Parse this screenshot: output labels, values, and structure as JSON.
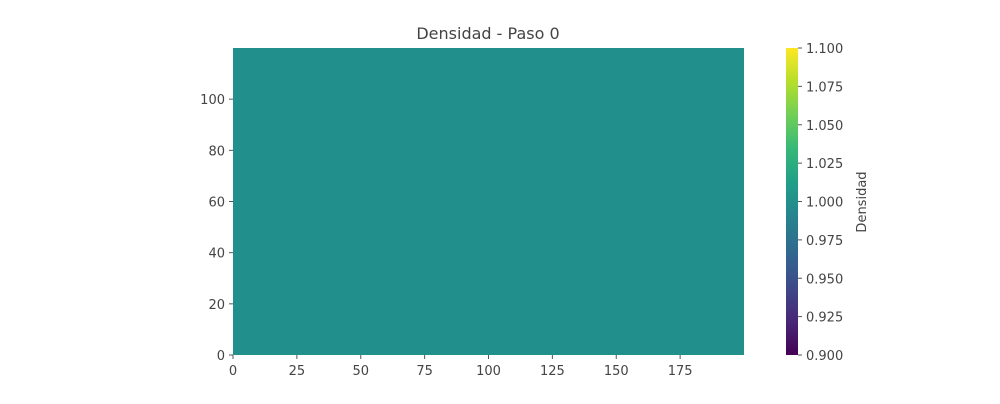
{
  "chart_data": {
    "type": "heatmap",
    "title": "Densidad - Paso 0",
    "xlabel": "",
    "ylabel": "",
    "xlim": [
      0,
      200
    ],
    "ylim": [
      0,
      120
    ],
    "x_ticks": [
      0,
      25,
      50,
      75,
      100,
      125,
      150,
      175
    ],
    "y_ticks": [
      0,
      20,
      40,
      60,
      80,
      100
    ],
    "grid_shape": [
      120,
      200
    ],
    "field": "uniform",
    "value": 1.0,
    "cell_color": "#21908d",
    "colorbar": {
      "label": "Densidad",
      "min": 0.9,
      "max": 1.1,
      "ticks": [
        "0.900",
        "0.925",
        "0.950",
        "0.975",
        "1.000",
        "1.025",
        "1.050",
        "1.075",
        "1.100"
      ],
      "colormap": "viridis",
      "colors": [
        "#440154",
        "#482878",
        "#3e4a89",
        "#31688e",
        "#26828e",
        "#1f9e89",
        "#35b779",
        "#6ece58",
        "#b5de2b",
        "#fde725"
      ]
    }
  }
}
